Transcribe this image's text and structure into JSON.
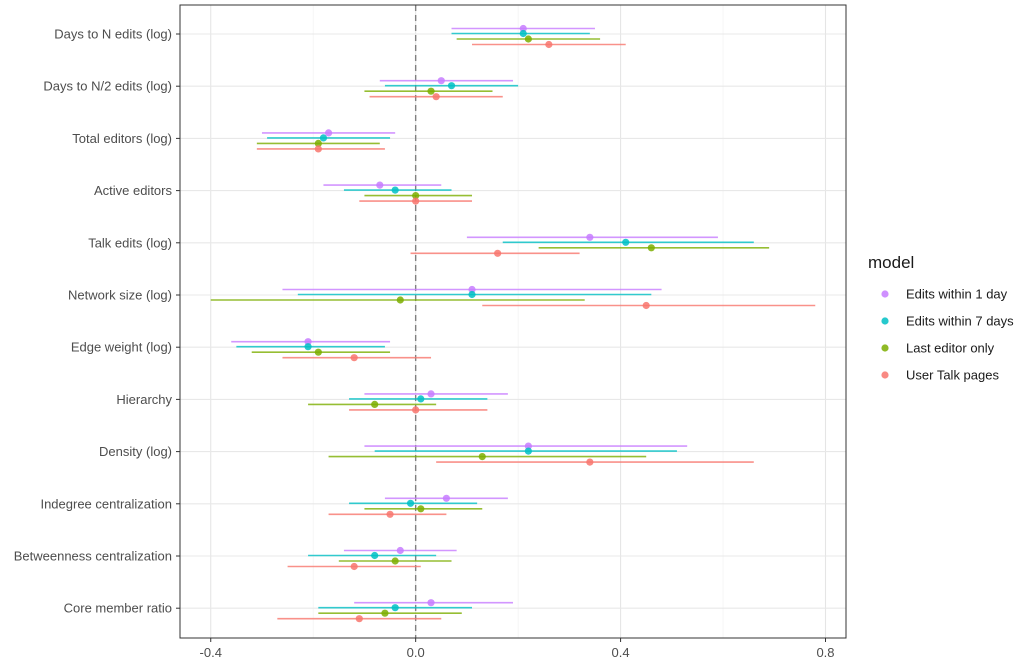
{
  "chart_data": {
    "type": "scatter",
    "subtype": "coefficient-plot",
    "title": "",
    "xlabel": "",
    "ylabel": "",
    "xlim": [
      -0.46,
      0.84
    ],
    "x_ticks": [
      -0.4,
      0.0,
      0.4,
      0.8
    ],
    "x_tick_labels": [
      "-0.4",
      "0.0",
      "0.4",
      "0.8"
    ],
    "reference_line": 0,
    "grid": true,
    "legend": {
      "title": "model",
      "placement": "right"
    },
    "categories": [
      "Days to N edits (log)",
      "Days to N/2 edits (log)",
      "Total editors (log)",
      "Active editors",
      "Talk edits (log)",
      "Network size (log)",
      "Edge weight (log)",
      "Hierarchy",
      "Density (log)",
      "Indegree centralization",
      "Betweenness centralization",
      "Core member ratio"
    ],
    "series": [
      {
        "name": "Edits within 1 day",
        "color": "#c77cff",
        "points": [
          {
            "est": 0.21,
            "lo": 0.07,
            "hi": 0.35
          },
          {
            "est": 0.05,
            "lo": -0.07,
            "hi": 0.19
          },
          {
            "est": -0.17,
            "lo": -0.3,
            "hi": -0.04
          },
          {
            "est": -0.07,
            "lo": -0.18,
            "hi": 0.05
          },
          {
            "est": 0.34,
            "lo": 0.1,
            "hi": 0.59
          },
          {
            "est": 0.11,
            "lo": -0.26,
            "hi": 0.48
          },
          {
            "est": -0.21,
            "lo": -0.36,
            "hi": -0.05
          },
          {
            "est": 0.03,
            "lo": -0.1,
            "hi": 0.18
          },
          {
            "est": 0.22,
            "lo": -0.1,
            "hi": 0.53
          },
          {
            "est": 0.06,
            "lo": -0.06,
            "hi": 0.18
          },
          {
            "est": -0.03,
            "lo": -0.14,
            "hi": 0.08
          },
          {
            "est": 0.03,
            "lo": -0.12,
            "hi": 0.19
          }
        ]
      },
      {
        "name": "Edits within 7 days",
        "color": "#00bfc4",
        "points": [
          {
            "est": 0.21,
            "lo": 0.07,
            "hi": 0.34
          },
          {
            "est": 0.07,
            "lo": -0.06,
            "hi": 0.2
          },
          {
            "est": -0.18,
            "lo": -0.29,
            "hi": -0.05
          },
          {
            "est": -0.04,
            "lo": -0.14,
            "hi": 0.07
          },
          {
            "est": 0.41,
            "lo": 0.17,
            "hi": 0.66
          },
          {
            "est": 0.11,
            "lo": -0.23,
            "hi": 0.46
          },
          {
            "est": -0.21,
            "lo": -0.35,
            "hi": -0.06
          },
          {
            "est": 0.01,
            "lo": -0.13,
            "hi": 0.14
          },
          {
            "est": 0.22,
            "lo": -0.08,
            "hi": 0.51
          },
          {
            "est": -0.01,
            "lo": -0.13,
            "hi": 0.12
          },
          {
            "est": -0.08,
            "lo": -0.21,
            "hi": 0.04
          },
          {
            "est": -0.04,
            "lo": -0.19,
            "hi": 0.11
          }
        ]
      },
      {
        "name": "Last editor only",
        "color": "#7cae00",
        "points": [
          {
            "est": 0.22,
            "lo": 0.08,
            "hi": 0.36
          },
          {
            "est": 0.03,
            "lo": -0.1,
            "hi": 0.15
          },
          {
            "est": -0.19,
            "lo": -0.31,
            "hi": -0.07
          },
          {
            "est": 0.0,
            "lo": -0.1,
            "hi": 0.11
          },
          {
            "est": 0.46,
            "lo": 0.24,
            "hi": 0.69
          },
          {
            "est": -0.03,
            "lo": -0.4,
            "hi": 0.33
          },
          {
            "est": -0.19,
            "lo": -0.32,
            "hi": -0.05
          },
          {
            "est": -0.08,
            "lo": -0.21,
            "hi": 0.04
          },
          {
            "est": 0.13,
            "lo": -0.17,
            "hi": 0.45
          },
          {
            "est": 0.01,
            "lo": -0.1,
            "hi": 0.13
          },
          {
            "est": -0.04,
            "lo": -0.15,
            "hi": 0.07
          },
          {
            "est": -0.06,
            "lo": -0.19,
            "hi": 0.09
          }
        ]
      },
      {
        "name": "User Talk pages",
        "color": "#f8766d",
        "points": [
          {
            "est": 0.26,
            "lo": 0.11,
            "hi": 0.41
          },
          {
            "est": 0.04,
            "lo": -0.09,
            "hi": 0.17
          },
          {
            "est": -0.19,
            "lo": -0.31,
            "hi": -0.06
          },
          {
            "est": 0.0,
            "lo": -0.11,
            "hi": 0.11
          },
          {
            "est": 0.16,
            "lo": -0.01,
            "hi": 0.32
          },
          {
            "est": 0.45,
            "lo": 0.13,
            "hi": 0.78
          },
          {
            "est": -0.12,
            "lo": -0.26,
            "hi": 0.03
          },
          {
            "est": 0.0,
            "lo": -0.13,
            "hi": 0.14
          },
          {
            "est": 0.34,
            "lo": 0.04,
            "hi": 0.66
          },
          {
            "est": -0.05,
            "lo": -0.17,
            "hi": 0.06
          },
          {
            "est": -0.12,
            "lo": -0.25,
            "hi": 0.01
          },
          {
            "est": -0.11,
            "lo": -0.27,
            "hi": 0.05
          }
        ]
      }
    ]
  }
}
